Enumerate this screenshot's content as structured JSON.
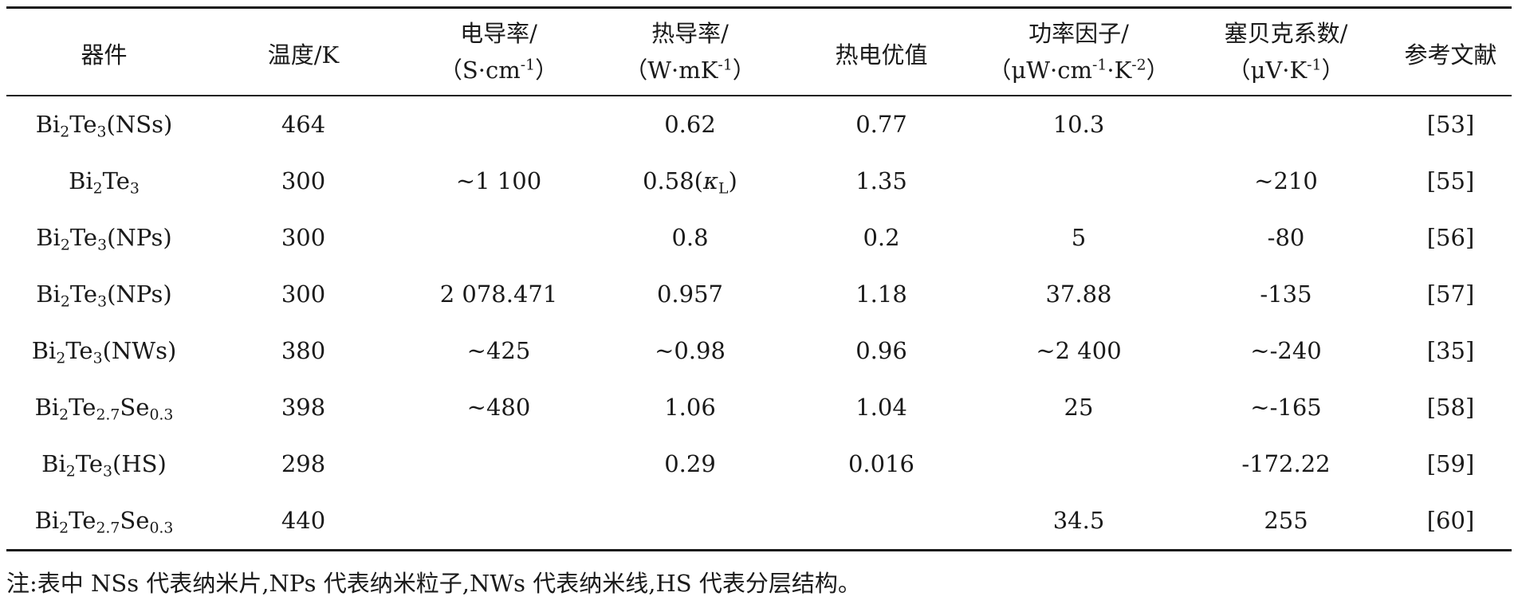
{
  "headers": {
    "device": "器件",
    "temperature": "温度/K",
    "conductivity": {
      "line1": "电导率/",
      "line2_pre": "（S·cm",
      "line2_sup": "-1",
      "line2_post": "）"
    },
    "thermal": {
      "line1": "热导率/",
      "line2_pre": "（W·mK",
      "line2_sup": "-1",
      "line2_post": "）"
    },
    "zt": "热电优值",
    "power_factor": {
      "line1": "功率因子/",
      "line2_pre": "（μW·cm",
      "line2_sup1": "-1",
      "line2_mid": "·K",
      "line2_sup2": "-2",
      "line2_post": "）"
    },
    "seebeck": {
      "line1": "塞贝克系数/",
      "line2_pre": "（μV·K",
      "line2_sup": "-1",
      "line2_post": "）"
    },
    "reference": "参考文献"
  },
  "rows": [
    {
      "device": {
        "p1": "Bi",
        "s1": "2",
        "p2": "Te",
        "s2": "3",
        "p3": "",
        "s3": "",
        "p4": "(NSs)"
      },
      "temperature": "464",
      "conductivity": "",
      "thermal": "0.62",
      "zt": "0.77",
      "power_factor": "10.3",
      "seebeck": "",
      "reference": "[53]"
    },
    {
      "device": {
        "p1": "Bi",
        "s1": "2",
        "p2": "Te",
        "s2": "3",
        "p3": "",
        "s3": "",
        "p4": ""
      },
      "temperature": "300",
      "conductivity": "~1 100",
      "thermal_main": "0.58(",
      "thermal_kappa": "κ",
      "thermal_sub": "L",
      "thermal_close": ")",
      "zt": "1.35",
      "power_factor": "",
      "seebeck": "~210",
      "reference": "[55]"
    },
    {
      "device": {
        "p1": "Bi",
        "s1": "2",
        "p2": "Te",
        "s2": "3",
        "p3": "",
        "s3": "",
        "p4": "(NPs)"
      },
      "temperature": "300",
      "conductivity": "",
      "thermal": "0.8",
      "zt": "0.2",
      "power_factor": "5",
      "seebeck": "-80",
      "reference": "[56]"
    },
    {
      "device": {
        "p1": "Bi",
        "s1": "2",
        "p2": "Te",
        "s2": "3",
        "p3": "",
        "s3": "",
        "p4": "(NPs)"
      },
      "temperature": "300",
      "conductivity": "2 078.471",
      "thermal": "0.957",
      "zt": "1.18",
      "power_factor": "37.88",
      "seebeck": "-135",
      "reference": "[57]"
    },
    {
      "device": {
        "p1": "Bi",
        "s1": "2",
        "p2": "Te",
        "s2": "3",
        "p3": "",
        "s3": "",
        "p4": "(NWs)"
      },
      "temperature": "380",
      "conductivity": "~425",
      "thermal": "~0.98",
      "zt": "0.96",
      "power_factor": "~2 400",
      "seebeck": "~-240",
      "reference": "[35]"
    },
    {
      "device": {
        "p1": "Bi",
        "s1": "2",
        "p2": "Te",
        "s2": "2.7",
        "p3": "Se",
        "s3": "0.3",
        "p4": ""
      },
      "temperature": "398",
      "conductivity": "~480",
      "thermal": "1.06",
      "zt": "1.04",
      "power_factor": "25",
      "seebeck": "~-165",
      "reference": "[58]"
    },
    {
      "device": {
        "p1": "Bi",
        "s1": "2",
        "p2": "Te",
        "s2": "3",
        "p3": "",
        "s3": "",
        "p4": "(HS)"
      },
      "temperature": "298",
      "conductivity": "",
      "thermal": "0.29",
      "zt": "0.016",
      "power_factor": "",
      "seebeck": "-172.22",
      "reference": "[59]"
    },
    {
      "device": {
        "p1": "Bi",
        "s1": "2",
        "p2": "Te",
        "s2": "2.7",
        "p3": "Se",
        "s3": "0.3",
        "p4": ""
      },
      "temperature": "440",
      "conductivity": "",
      "thermal": "",
      "zt": "",
      "power_factor": "34.5",
      "seebeck": "255",
      "reference": "[60]"
    }
  ],
  "note": "注:表中 NSs 代表纳米片,NPs 代表纳米粒子,NWs 代表纳米线,HS 代表分层结构。"
}
